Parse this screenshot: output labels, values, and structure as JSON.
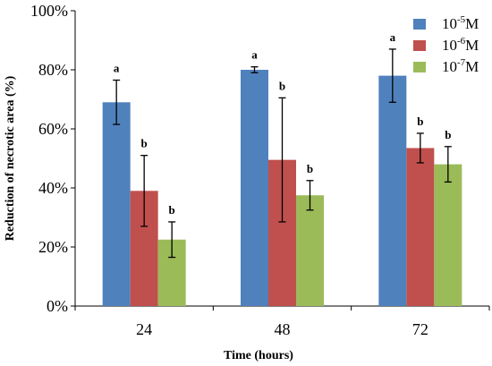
{
  "chart_data": {
    "type": "bar",
    "categories": [
      "24",
      "48",
      "72"
    ],
    "xlabel": "Time (hours)",
    "ylabel": "Reduction of necrotic area (%)",
    "ylim": [
      0,
      100
    ],
    "yticks": [
      "0%",
      "20%",
      "40%",
      "60%",
      "80%",
      "100%"
    ],
    "grid": false,
    "legend_position": "top-right",
    "series": [
      {
        "legend_base": "10",
        "legend_exp": "-5",
        "legend_unit": "M",
        "color": "#4F81BD",
        "values": [
          69,
          80,
          78
        ],
        "errors": [
          7.5,
          1,
          9
        ],
        "labels": [
          "a",
          "a",
          "a"
        ]
      },
      {
        "legend_base": "10",
        "legend_exp": "-6",
        "legend_unit": "M",
        "color": "#C0504D",
        "values": [
          39,
          49.5,
          53.5
        ],
        "errors": [
          12,
          21,
          5
        ],
        "labels": [
          "b",
          "b",
          "b"
        ]
      },
      {
        "legend_base": "10",
        "legend_exp": "-7",
        "legend_unit": "M",
        "color": "#9BBB59",
        "values": [
          22.5,
          37.5,
          48
        ],
        "errors": [
          6,
          5,
          6
        ],
        "labels": [
          "b",
          "b",
          "b"
        ]
      }
    ]
  }
}
